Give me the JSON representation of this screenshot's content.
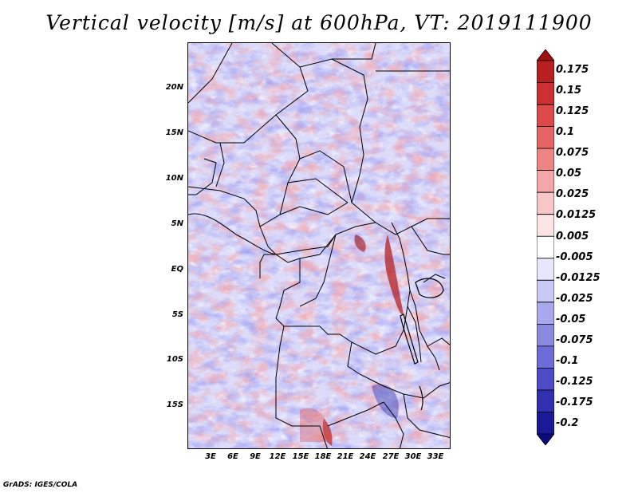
{
  "title": "Vertical velocity [m/s] at 600hPa, VT: 2019111900",
  "y_axis_labels": [
    "20N",
    "15N",
    "10N",
    "5N",
    "EQ",
    "5S",
    "10S",
    "15S"
  ],
  "x_axis_labels": [
    "3E",
    "6E",
    "9E",
    "12E",
    "15E",
    "18E",
    "21E",
    "24E",
    "27E",
    "30E",
    "33E"
  ],
  "colorbar": {
    "labels": [
      "0.175",
      "0.15",
      "0.125",
      "0.1",
      "0.075",
      "0.05",
      "0.025",
      "0.0125",
      "0.005",
      "-0.005",
      "-0.0125",
      "-0.025",
      "-0.05",
      "-0.075",
      "-0.1",
      "-0.125",
      "-0.175",
      "-0.2"
    ],
    "colors": [
      "#a01010",
      "#b82020",
      "#cc3030",
      "#dd4848",
      "#e66464",
      "#ee8484",
      "#f4a6a6",
      "#f8c6c6",
      "#fce4e4",
      "#ffffff",
      "#e6e6fc",
      "#c8c8f4",
      "#a8a8ec",
      "#8a8ae0",
      "#6c6cd6",
      "#4c4cc8",
      "#3030b0",
      "#1a1a98",
      "#0c0c80"
    ]
  },
  "footer": "GrADS: IGES/COLA"
}
